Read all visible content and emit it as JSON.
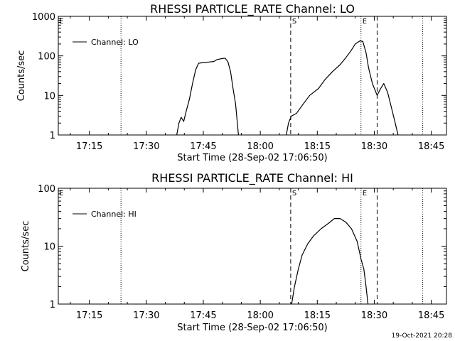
{
  "footer": {
    "timestamp": "19-Oct-2021 20:28"
  },
  "chart_data": [
    {
      "type": "line",
      "title": "RHESSI PARTICLE_RATE Channel: LO",
      "xlabel": "Start Time (28-Sep-02 17:06:50)",
      "ylabel": "Counts/sec",
      "yscale": "log",
      "ylim": [
        1,
        1000
      ],
      "y_ticks": [
        "1",
        "10",
        "100",
        "1000"
      ],
      "xlim": [
        "17:06:50",
        "18:49:00"
      ],
      "x_ticks": [
        "17:15",
        "17:30",
        "17:45",
        "18:00",
        "18:15",
        "18:30",
        "18:45"
      ],
      "grid": false,
      "legend": {
        "position": "top-left",
        "entries": [
          "Channel: LO"
        ]
      },
      "annotations": [
        {
          "type": "dotted-vertical",
          "x": "17:23:20"
        },
        {
          "type": "dashed-vertical",
          "x": "18:08:00",
          "label": "S"
        },
        {
          "type": "dotted-vertical",
          "x": "18:26:30",
          "label": "E"
        },
        {
          "type": "dashed-vertical",
          "x": "18:30:45"
        },
        {
          "type": "dotted-vertical",
          "x": "18:42:45"
        },
        {
          "type": "marker",
          "x": "17:06:50",
          "label": "E"
        }
      ],
      "series": [
        {
          "name": "Channel: LO",
          "segments": [
            [
              [
                "17:38:00",
                1
              ],
              [
                "17:38:35",
                2
              ],
              [
                "17:39:10",
                2.8
              ],
              [
                "17:39:50",
                2.2
              ],
              [
                "17:40:30",
                4
              ],
              [
                "17:41:20",
                8
              ],
              [
                "17:42:10",
                20
              ],
              [
                "17:43:00",
                45
              ],
              [
                "17:43:45",
                65
              ],
              [
                "17:45:00",
                68
              ],
              [
                "17:46:30",
                70
              ],
              [
                "17:47:45",
                72
              ],
              [
                "17:48:30",
                80
              ],
              [
                "17:49:45",
                85
              ],
              [
                "17:50:45",
                88
              ],
              [
                "17:51:30",
                70
              ],
              [
                "17:52:10",
                40
              ],
              [
                "17:52:50",
                15
              ],
              [
                "17:53:30",
                6
              ],
              [
                "17:54:15",
                1
              ]
            ],
            [
              [
                "18:06:50",
                1
              ],
              [
                "18:07:25",
                2
              ],
              [
                "18:08:10",
                3
              ],
              [
                "18:09:30",
                3.5
              ],
              [
                "18:11:15",
                6
              ],
              [
                "18:13:00",
                10
              ],
              [
                "18:15:20",
                15
              ],
              [
                "18:17:00",
                25
              ],
              [
                "18:19:00",
                40
              ],
              [
                "18:21:00",
                60
              ],
              [
                "18:22:30",
                90
              ],
              [
                "18:23:45",
                130
              ],
              [
                "18:25:00",
                200
              ],
              [
                "18:26:15",
                240
              ],
              [
                "18:27:00",
                230
              ],
              [
                "18:27:50",
                120
              ],
              [
                "18:28:30",
                50
              ],
              [
                "18:29:30",
                20
              ],
              [
                "18:30:45",
                10
              ],
              [
                "18:31:30",
                14
              ],
              [
                "18:32:30",
                20
              ],
              [
                "18:33:30",
                12
              ],
              [
                "18:34:30",
                5
              ],
              [
                "18:35:30",
                2
              ],
              [
                "18:36:15",
                1
              ]
            ]
          ]
        }
      ]
    },
    {
      "type": "line",
      "title": "RHESSI PARTICLE_RATE Channel: HI",
      "xlabel": "Start Time (28-Sep-02 17:06:50)",
      "ylabel": "Counts/sec",
      "yscale": "log",
      "ylim": [
        1,
        100
      ],
      "y_ticks": [
        "1",
        "10",
        "100"
      ],
      "xlim": [
        "17:06:50",
        "18:49:00"
      ],
      "x_ticks": [
        "17:15",
        "17:30",
        "17:45",
        "18:00",
        "18:15",
        "18:30",
        "18:45"
      ],
      "grid": false,
      "legend": {
        "position": "top-left",
        "entries": [
          "Channel: HI"
        ]
      },
      "annotations": [
        {
          "type": "dotted-vertical",
          "x": "17:23:20"
        },
        {
          "type": "dashed-vertical",
          "x": "18:08:00",
          "label": "S"
        },
        {
          "type": "dotted-vertical",
          "x": "18:26:30",
          "label": "E"
        },
        {
          "type": "dashed-vertical",
          "x": "18:30:45"
        },
        {
          "type": "dotted-vertical",
          "x": "18:42:45"
        },
        {
          "type": "marker",
          "x": "17:06:50",
          "label": "E"
        }
      ],
      "series": [
        {
          "name": "Channel: HI",
          "segments": [
            [
              [
                "18:08:15",
                1
              ],
              [
                "18:09:00",
                2
              ],
              [
                "18:10:00",
                4
              ],
              [
                "18:11:00",
                7
              ],
              [
                "18:12:30",
                11
              ],
              [
                "18:14:00",
                15
              ],
              [
                "18:16:00",
                20
              ],
              [
                "18:18:00",
                25
              ],
              [
                "18:19:30",
                30
              ],
              [
                "18:21:00",
                30
              ],
              [
                "18:22:30",
                26
              ],
              [
                "18:24:00",
                20
              ],
              [
                "18:25:30",
                12
              ],
              [
                "18:26:30",
                6
              ],
              [
                "18:27:15",
                4
              ],
              [
                "18:27:50",
                2
              ],
              [
                "18:28:20",
                1
              ]
            ]
          ]
        }
      ]
    }
  ]
}
